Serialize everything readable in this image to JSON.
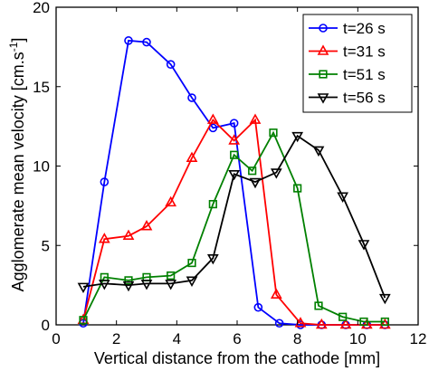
{
  "chart_data": {
    "type": "line",
    "xlabel": "Vertical distance from the cathode [mm]",
    "ylabel": "Agglomerate mean velocity [cm.s",
    "ylabel_sup": "-1",
    "ylabel_close": "]",
    "xlim": [
      0,
      12
    ],
    "ylim": [
      0,
      20
    ],
    "xticks": [
      0,
      2,
      4,
      6,
      8,
      10,
      12
    ],
    "yticks": [
      0,
      5,
      10,
      15,
      20
    ],
    "grid": false,
    "legend_position": "top-right",
    "series": [
      {
        "name": "t=26 s",
        "color": "#0000ff",
        "marker": "circle",
        "x": [
          0.9,
          1.6,
          2.4,
          3.0,
          3.8,
          4.5,
          5.2,
          5.9,
          6.7,
          7.4,
          8.1,
          8.8,
          9.6,
          10.3,
          10.9
        ],
        "y": [
          0.1,
          9.0,
          17.9,
          17.8,
          16.4,
          14.3,
          12.4,
          12.7,
          1.1,
          0.1,
          0.0,
          0.0,
          0.0,
          0.0,
          0.0
        ]
      },
      {
        "name": "t=31 s",
        "color": "#ff0000",
        "marker": "triangle-up",
        "x": [
          0.9,
          1.6,
          2.4,
          3.0,
          3.8,
          4.5,
          5.2,
          5.9,
          6.6,
          7.3,
          8.1,
          8.8,
          9.6,
          10.3,
          10.9
        ],
        "y": [
          0.3,
          5.4,
          5.6,
          6.2,
          7.7,
          10.5,
          12.9,
          11.6,
          12.9,
          1.9,
          0.1,
          0.0,
          0.0,
          0.0,
          0.0
        ]
      },
      {
        "name": "t=51 s",
        "color": "#008000",
        "marker": "square",
        "x": [
          0.9,
          1.6,
          2.4,
          3.0,
          3.8,
          4.5,
          5.2,
          5.9,
          6.5,
          7.2,
          8.0,
          8.7,
          9.5,
          10.2,
          10.9
        ],
        "y": [
          0.3,
          3.0,
          2.8,
          3.0,
          3.1,
          3.9,
          7.6,
          10.7,
          9.7,
          12.1,
          8.6,
          1.2,
          0.5,
          0.2,
          0.2
        ]
      },
      {
        "name": "t=56 s",
        "color": "#000000",
        "marker": "triangle-down",
        "x": [
          0.9,
          1.6,
          2.4,
          3.0,
          3.8,
          4.5,
          5.2,
          5.9,
          6.6,
          7.3,
          8.0,
          8.7,
          9.5,
          10.2,
          10.9
        ],
        "y": [
          2.4,
          2.6,
          2.5,
          2.6,
          2.6,
          2.8,
          4.2,
          9.5,
          9.0,
          9.6,
          11.9,
          11.0,
          8.1,
          5.1,
          1.7
        ]
      }
    ]
  }
}
